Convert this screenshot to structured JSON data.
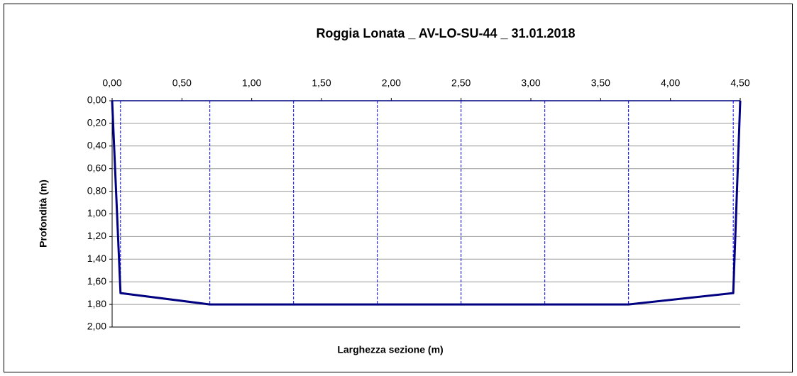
{
  "chart_data": {
    "type": "line",
    "title": "Roggia Lonata _ AV-LO-SU-44 _ 31.01.2018",
    "x_label": "Larghezza sezione (m)",
    "y_label": "Profondità (m)",
    "x": [
      0,
      0.06,
      0.7,
      1.3,
      1.9,
      2.5,
      3.1,
      3.7,
      4.45,
      4.5
    ],
    "series": [
      {
        "color": "#000080",
        "values": [
          0,
          1.7,
          1.8,
          1.8,
          1.8,
          1.8,
          1.8,
          1.8,
          1.7,
          0
        ]
      }
    ],
    "xlim": [
      0,
      4.5
    ],
    "ylim": [
      0,
      2
    ],
    "y_inverted": true,
    "xticks": [
      {
        "value": 0,
        "label": "0,00"
      },
      {
        "value": 0.5,
        "label": "0,50"
      },
      {
        "value": 1,
        "label": "1,00"
      },
      {
        "value": 1.5,
        "label": "1,50"
      },
      {
        "value": 2,
        "label": "2,00"
      },
      {
        "value": 2.5,
        "label": "2,50"
      },
      {
        "value": 3,
        "label": "3,00"
      },
      {
        "value": 3.5,
        "label": "3,50"
      },
      {
        "value": 4,
        "label": "4,00"
      },
      {
        "value": 4.5,
        "label": "4,50"
      }
    ],
    "yticks": [
      {
        "value": 0,
        "label": "0,00"
      },
      {
        "value": 0.2,
        "label": "0,20"
      },
      {
        "value": 0.4,
        "label": "0,40"
      },
      {
        "value": 0.6,
        "label": "0,60"
      },
      {
        "value": 0.8,
        "label": "0,80"
      },
      {
        "value": 1,
        "label": "1,00"
      },
      {
        "value": 1.2,
        "label": "1,20"
      },
      {
        "value": 1.4,
        "label": "1,40"
      },
      {
        "value": 1.6,
        "label": "1,60"
      },
      {
        "value": 1.8,
        "label": "1,80"
      },
      {
        "value": 2,
        "label": "2,00"
      }
    ],
    "grid": true,
    "verticals_color": "#0000ff"
  }
}
